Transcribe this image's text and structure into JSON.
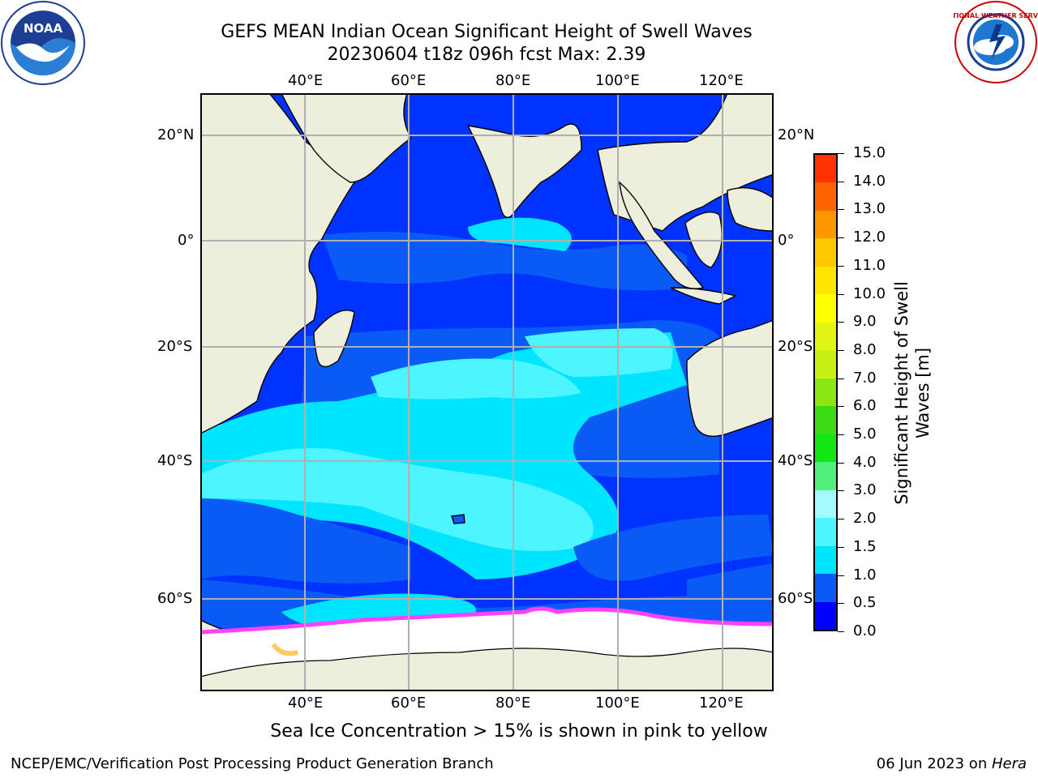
{
  "header": {
    "title_line1": "GEFS MEAN Indian Ocean Significant Height of Swell Waves",
    "title_line2": "20230604 t18z 096h fcst   Max: 2.39"
  },
  "logos": {
    "left": {
      "name": "noaa-logo",
      "text": "NOAA"
    },
    "right": {
      "name": "national-weather-service-logo",
      "text": "NATIONAL WEATHER SERVICE"
    }
  },
  "map": {
    "lon_labels": [
      "40°E",
      "60°E",
      "80°E",
      "100°E",
      "120°E"
    ],
    "lat_labels": [
      "20°N",
      "0°",
      "20°S",
      "40°S",
      "60°S"
    ],
    "lon_range": [
      20,
      130
    ],
    "lat_range": [
      -73,
      28
    ],
    "grid": true,
    "colors": {
      "land": "#eeeedc",
      "ocean": "#0033ff",
      "grid": "#b0b0b0",
      "sea_ice": "#ffffff"
    }
  },
  "colorbar": {
    "title_line1": "Significant Height of Swell",
    "title_line2": "Waves [m]",
    "tick_labels": [
      "0.0",
      "0.5",
      "1.0",
      "1.5",
      "2.0",
      "3.0",
      "4.0",
      "5.0",
      "6.0",
      "7.0",
      "8.0",
      "9.0",
      "10.0",
      "11.0",
      "12.0",
      "13.0",
      "14.0",
      "15.0"
    ],
    "colors": [
      "#0000ff",
      "#0a5af5",
      "#00e5ff",
      "#4cf5ff",
      "#a4fbff",
      "#50f07a",
      "#14e614",
      "#3cdc14",
      "#8ce614",
      "#c8f014",
      "#e1f514",
      "#ffff00",
      "#ffe600",
      "#ffc800",
      "#ff9600",
      "#ff6400",
      "#ff3200",
      "#ff0000"
    ]
  },
  "subtitle": "Sea Ice Concentration > 15% is shown in pink to yellow",
  "footer": {
    "left": "NCEP/EMC/Verification Post Processing Product Generation Branch",
    "right_prefix": "06 Jun 2023 on ",
    "right_host": "Hera"
  }
}
